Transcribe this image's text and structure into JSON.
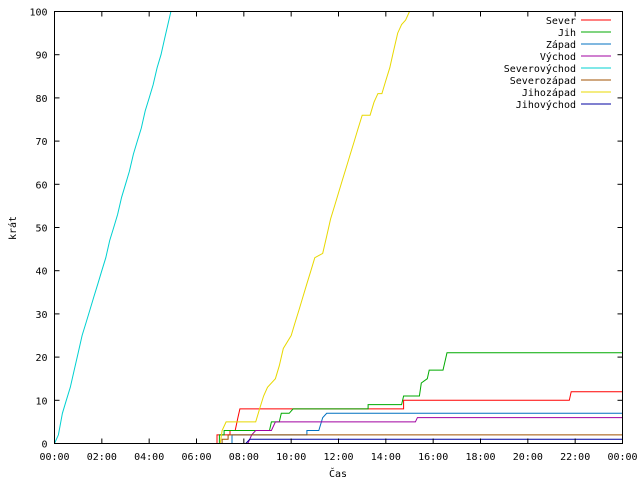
{
  "chart_data": {
    "type": "line",
    "title": "",
    "xlabel": "Čas",
    "ylabel": "krát",
    "xlim": [
      "00:00",
      "24:00"
    ],
    "ylim": [
      0,
      100
    ],
    "x_ticks": [
      "00:00",
      "02:00",
      "04:00",
      "06:00",
      "08:00",
      "10:00",
      "12:00",
      "14:00",
      "16:00",
      "18:00",
      "20:00",
      "22:00",
      "00:00"
    ],
    "y_ticks": [
      "0",
      "10",
      "20",
      "30",
      "40",
      "50",
      "60",
      "70",
      "80",
      "90",
      "100"
    ],
    "grid": false,
    "legend_position": "top-right",
    "series": [
      {
        "name": "Sever",
        "color": "#ff0000",
        "points": [
          [
            "06:52",
            0
          ],
          [
            "06:52",
            2
          ],
          [
            "07:25",
            2
          ],
          [
            "07:25",
            3
          ],
          [
            "07:38",
            3
          ],
          [
            "07:45",
            6
          ],
          [
            "07:50",
            8
          ],
          [
            "10:15",
            8
          ],
          [
            "14:45",
            8
          ],
          [
            "14:45",
            10
          ],
          [
            "21:45",
            10
          ],
          [
            "21:50",
            12
          ],
          [
            "24:00",
            12
          ]
        ]
      },
      {
        "name": "Jih",
        "color": "#00aa00",
        "points": [
          [
            "06:58",
            0
          ],
          [
            "06:58",
            2
          ],
          [
            "07:10",
            2
          ],
          [
            "07:10",
            3
          ],
          [
            "08:20",
            3
          ],
          [
            "09:05",
            3
          ],
          [
            "09:10",
            5
          ],
          [
            "09:30",
            5
          ],
          [
            "09:35",
            7
          ],
          [
            "09:55",
            7
          ],
          [
            "10:05",
            8
          ],
          [
            "13:15",
            8
          ],
          [
            "13:15",
            9
          ],
          [
            "14:40",
            9
          ],
          [
            "14:45",
            11
          ],
          [
            "15:25",
            11
          ],
          [
            "15:30",
            14
          ],
          [
            "15:45",
            15
          ],
          [
            "15:50",
            17
          ],
          [
            "16:25",
            17
          ],
          [
            "16:35",
            21
          ],
          [
            "24:00",
            21
          ]
        ]
      },
      {
        "name": "Západ",
        "color": "#0070c0",
        "points": [
          [
            "07:30",
            0
          ],
          [
            "07:30",
            2
          ],
          [
            "10:40",
            2
          ],
          [
            "10:40",
            3
          ],
          [
            "11:10",
            3
          ],
          [
            "11:20",
            6
          ],
          [
            "11:30",
            7
          ],
          [
            "24:00",
            7
          ]
        ]
      },
      {
        "name": "Východ",
        "color": "#a000a0",
        "points": [
          [
            "08:10",
            0
          ],
          [
            "08:20",
            2
          ],
          [
            "08:30",
            3
          ],
          [
            "09:10",
            3
          ],
          [
            "09:20",
            5
          ],
          [
            "15:15",
            5
          ],
          [
            "15:20",
            6
          ],
          [
            "24:00",
            6
          ]
        ]
      },
      {
        "name": "Severovýchod",
        "color": "#00d0d0",
        "points": [
          [
            "00:00",
            0
          ],
          [
            "00:10",
            2
          ],
          [
            "00:20",
            7
          ],
          [
            "00:30",
            10
          ],
          [
            "00:40",
            13
          ],
          [
            "00:50",
            17
          ],
          [
            "01:00",
            21
          ],
          [
            "01:10",
            25
          ],
          [
            "01:20",
            28
          ],
          [
            "01:30",
            31
          ],
          [
            "01:40",
            34
          ],
          [
            "01:50",
            37
          ],
          [
            "02:00",
            40
          ],
          [
            "02:10",
            43
          ],
          [
            "02:20",
            47
          ],
          [
            "02:30",
            50
          ],
          [
            "02:40",
            53
          ],
          [
            "02:50",
            57
          ],
          [
            "03:00",
            60
          ],
          [
            "03:10",
            63
          ],
          [
            "03:20",
            67
          ],
          [
            "03:30",
            70
          ],
          [
            "03:40",
            73
          ],
          [
            "03:50",
            77
          ],
          [
            "04:00",
            80
          ],
          [
            "04:10",
            83
          ],
          [
            "04:20",
            87
          ],
          [
            "04:30",
            90
          ],
          [
            "04:40",
            94
          ],
          [
            "04:50",
            98
          ],
          [
            "04:55",
            100
          ]
        ]
      },
      {
        "name": "Severozápad",
        "color": "#a05000",
        "points": [
          [
            "07:05",
            0
          ],
          [
            "07:05",
            1
          ],
          [
            "07:20",
            1
          ],
          [
            "07:20",
            2
          ],
          [
            "24:00",
            2
          ]
        ]
      },
      {
        "name": "Jihozápad",
        "color": "#e8d800",
        "points": [
          [
            "07:00",
            0
          ],
          [
            "07:05",
            3
          ],
          [
            "07:15",
            5
          ],
          [
            "08:30",
            5
          ],
          [
            "08:40",
            8
          ],
          [
            "08:50",
            11
          ],
          [
            "09:00",
            13
          ],
          [
            "09:20",
            15
          ],
          [
            "09:30",
            18
          ],
          [
            "09:40",
            22
          ],
          [
            "10:00",
            25
          ],
          [
            "10:10",
            28
          ],
          [
            "10:20",
            31
          ],
          [
            "10:30",
            34
          ],
          [
            "10:40",
            37
          ],
          [
            "10:50",
            40
          ],
          [
            "11:00",
            43
          ],
          [
            "11:20",
            44
          ],
          [
            "11:30",
            48
          ],
          [
            "11:40",
            52
          ],
          [
            "11:50",
            55
          ],
          [
            "12:00",
            58
          ],
          [
            "12:10",
            61
          ],
          [
            "12:20",
            64
          ],
          [
            "12:30",
            67
          ],
          [
            "12:40",
            70
          ],
          [
            "12:50",
            73
          ],
          [
            "13:00",
            76
          ],
          [
            "13:20",
            76
          ],
          [
            "13:30",
            79
          ],
          [
            "13:40",
            81
          ],
          [
            "13:50",
            81
          ],
          [
            "14:00",
            84
          ],
          [
            "14:10",
            87
          ],
          [
            "14:20",
            91
          ],
          [
            "14:30",
            95
          ],
          [
            "14:40",
            97
          ],
          [
            "14:50",
            98
          ],
          [
            "15:00",
            100
          ]
        ]
      },
      {
        "name": "Jihovýchod",
        "color": "#0000a0",
        "points": [
          [
            "08:05",
            0
          ],
          [
            "08:15",
            1
          ],
          [
            "24:00",
            1
          ]
        ]
      }
    ]
  }
}
